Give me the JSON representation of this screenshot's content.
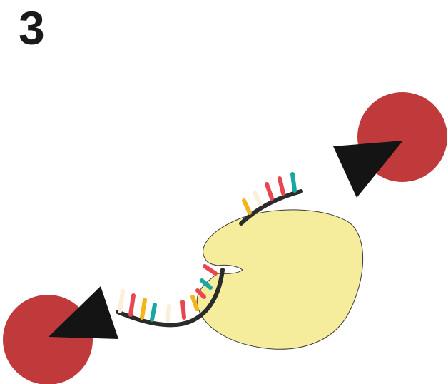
{
  "step": {
    "number": "3"
  },
  "colors": {
    "ball": "#c0393b",
    "arrow": "#141414",
    "enzyme_fill": "#f5ec9c",
    "enzyme_stroke": "#3a3a3a",
    "strand": "#2b2b2b",
    "base_red": "#e9464f",
    "base_teal": "#1aa7a4",
    "base_yellow": "#f3b41c",
    "base_cream": "#fbeeda"
  },
  "diagram": {
    "lower_strand_bases": [
      "cream",
      "red",
      "yellow",
      "teal",
      "cream",
      "red",
      "yellow",
      "red",
      "teal",
      "red"
    ],
    "upper_strand_bases": [
      "yellow",
      "cream",
      "red",
      "red",
      "teal"
    ]
  }
}
